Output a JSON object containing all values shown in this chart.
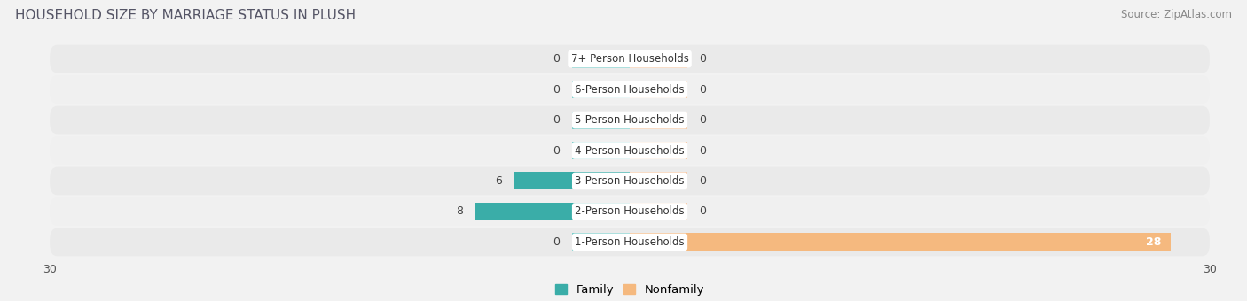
{
  "title": "HOUSEHOLD SIZE BY MARRIAGE STATUS IN PLUSH",
  "source": "Source: ZipAtlas.com",
  "categories": [
    "7+ Person Households",
    "6-Person Households",
    "5-Person Households",
    "4-Person Households",
    "3-Person Households",
    "2-Person Households",
    "1-Person Households"
  ],
  "family_values": [
    0,
    0,
    0,
    0,
    6,
    8,
    0
  ],
  "nonfamily_values": [
    0,
    0,
    0,
    0,
    0,
    0,
    28
  ],
  "family_color": "#3aada8",
  "nonfamily_color": "#f5b97f",
  "family_color_dim": "#7ecfcc",
  "nonfamily_color_dim": "#f7ccaa",
  "stub_size": 3.0,
  "xlim": 30,
  "bar_height": 0.58,
  "background_color": "#f2f2f2",
  "row_colors": [
    "#eaeaea",
    "#f0f0f0",
    "#eaeaea",
    "#f0f0f0",
    "#eaeaea",
    "#f0f0f0",
    "#eaeaea"
  ]
}
